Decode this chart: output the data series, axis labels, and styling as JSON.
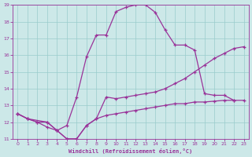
{
  "xlabel": "Windchill (Refroidissement éolien,°C)",
  "background_color": "#cce8e8",
  "line_color": "#993399",
  "grid_color": "#99cccc",
  "xlim": [
    -0.5,
    23.5
  ],
  "ylim": [
    11,
    19
  ],
  "xticks": [
    0,
    1,
    2,
    3,
    4,
    5,
    6,
    7,
    8,
    9,
    10,
    11,
    12,
    13,
    14,
    15,
    16,
    17,
    18,
    19,
    20,
    21,
    22,
    23
  ],
  "yticks": [
    11,
    12,
    13,
    14,
    15,
    16,
    17,
    18,
    19
  ],
  "line1_x": [
    0,
    1,
    2,
    3,
    4,
    5,
    6,
    7,
    8,
    9,
    10,
    11,
    12,
    13,
    14,
    15,
    16,
    17,
    18,
    19,
    20,
    21,
    22
  ],
  "line1_y": [
    12.5,
    12.2,
    12.0,
    11.7,
    11.5,
    11.8,
    13.5,
    15.9,
    17.2,
    17.2,
    18.6,
    18.85,
    19.0,
    19.0,
    18.55,
    17.5,
    16.6,
    16.6,
    16.3,
    13.7,
    13.6,
    13.6,
    13.3
  ],
  "line2_x": [
    0,
    1,
    2,
    3,
    4,
    5,
    6,
    7,
    8,
    9,
    10,
    11,
    12,
    13,
    14,
    15,
    16,
    17,
    18,
    19,
    20,
    21,
    22,
    23
  ],
  "line2_y": [
    12.5,
    12.2,
    12.0,
    12.0,
    11.5,
    11.0,
    11.0,
    11.8,
    12.2,
    13.5,
    13.4,
    13.5,
    13.6,
    13.7,
    13.8,
    14.0,
    14.3,
    14.6,
    15.0,
    15.4,
    15.8,
    16.1,
    16.4,
    16.5
  ],
  "line3_x": [
    0,
    1,
    3,
    4,
    5,
    6,
    7,
    8,
    9,
    10,
    11,
    12,
    13,
    14,
    15,
    16,
    17,
    18,
    19,
    20,
    21,
    22,
    23
  ],
  "line3_y": [
    12.5,
    12.2,
    12.0,
    11.5,
    11.0,
    11.0,
    11.8,
    12.2,
    12.4,
    12.5,
    12.6,
    12.7,
    12.8,
    12.9,
    13.0,
    13.1,
    13.1,
    13.2,
    13.2,
    13.25,
    13.3,
    13.3,
    13.3
  ]
}
